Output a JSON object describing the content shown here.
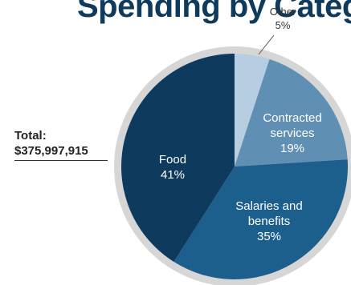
{
  "chart_data": {
    "type": "pie",
    "title": "Spending by Categ",
    "total_label": "Total:",
    "total_value": "$375,997,915",
    "slices": [
      {
        "name": "Other",
        "label_lines": [
          "Other"
        ],
        "percent_label": "5%",
        "value": 5,
        "color": "#b7cde1"
      },
      {
        "name": "Contracted services",
        "label_lines": [
          "Contracted",
          "services"
        ],
        "percent_label": "19%",
        "value": 19,
        "color": "#5f90b4"
      },
      {
        "name": "Salaries and benefits",
        "label_lines": [
          "Salaries and",
          "benefits"
        ],
        "percent_label": "35%",
        "value": 35,
        "color": "#1d5f8c"
      },
      {
        "name": "Food",
        "label_lines": [
          "Food"
        ],
        "percent_label": "41%",
        "value": 41,
        "color": "#0e3a5d"
      }
    ],
    "ring_color": "#d6d6d6"
  }
}
